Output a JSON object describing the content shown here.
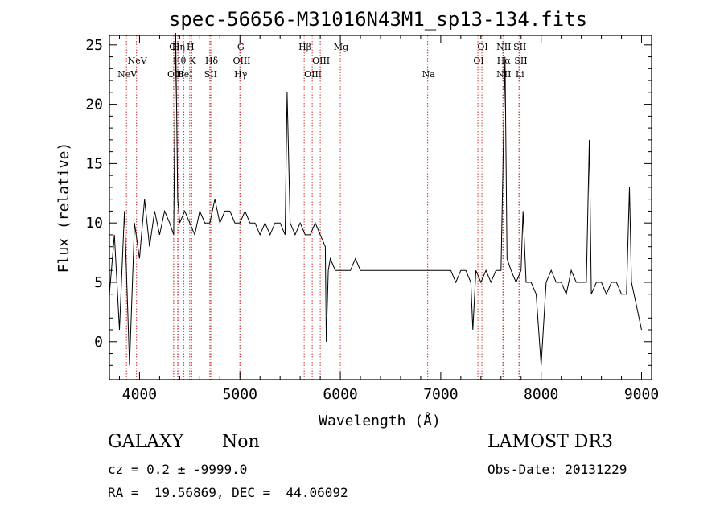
{
  "chart_data": {
    "type": "line",
    "title": "spec-56656-M31016N43M1_sp13-134.fits",
    "xlabel": "Wavelength (Å)",
    "ylabel": "Flux (relative)",
    "xlim": [
      3700,
      9100
    ],
    "ylim": [
      -3.2,
      25.8
    ],
    "xticks": [
      4000,
      5000,
      6000,
      7000,
      8000,
      9000
    ],
    "xtick_labels": [
      "4000",
      "5000",
      "6000",
      "7000",
      "8000",
      "9000"
    ],
    "yticks": [
      0,
      5,
      10,
      15,
      20,
      25
    ],
    "ytick_labels": [
      "0",
      "5",
      "10",
      "15",
      "20",
      "25"
    ],
    "spectrum_x": [
      3700,
      3750,
      3800,
      3850,
      3900,
      3950,
      4000,
      4050,
      4100,
      4150,
      4200,
      4250,
      4300,
      4340,
      4360,
      4380,
      4400,
      4450,
      4500,
      4550,
      4600,
      4650,
      4700,
      4750,
      4800,
      4850,
      4900,
      4950,
      5000,
      5050,
      5100,
      5150,
      5200,
      5250,
      5300,
      5350,
      5400,
      5450,
      5470,
      5500,
      5550,
      5600,
      5650,
      5700,
      5750,
      5800,
      5850,
      5860,
      5880,
      5900,
      5950,
      6000,
      6050,
      6100,
      6150,
      6200,
      6250,
      6300,
      6350,
      6400,
      6450,
      6500,
      6550,
      6600,
      6650,
      6700,
      6750,
      6800,
      6850,
      6900,
      6950,
      7000,
      7050,
      7100,
      7150,
      7200,
      7250,
      7300,
      7320,
      7350,
      7400,
      7450,
      7500,
      7550,
      7600,
      7640,
      7660,
      7700,
      7750,
      7800,
      7820,
      7850,
      7900,
      7950,
      8000,
      8050,
      8100,
      8150,
      8200,
      8250,
      8300,
      8350,
      8400,
      8450,
      8480,
      8500,
      8550,
      8600,
      8650,
      8700,
      8750,
      8800,
      8850,
      8880,
      8900,
      8950,
      9000
    ],
    "spectrum_y": [
      4,
      9,
      1,
      11,
      -2,
      10,
      7,
      12,
      8,
      11,
      9,
      11,
      10,
      9,
      26,
      12,
      10,
      11,
      10,
      9,
      11,
      10,
      10,
      12,
      10,
      11,
      11,
      10,
      10,
      11,
      10,
      10,
      9,
      10,
      9,
      10,
      10,
      9,
      21,
      10,
      9,
      10,
      9,
      9,
      10,
      9,
      8,
      0,
      6,
      7,
      6,
      6,
      6,
      6,
      7,
      6,
      6,
      6,
      6,
      6,
      6,
      6,
      6,
      6,
      6,
      6,
      6,
      6,
      6,
      6,
      6,
      6,
      6,
      6,
      5,
      6,
      6,
      5,
      1,
      6,
      5,
      6,
      5,
      6,
      6,
      24,
      7,
      6,
      5,
      6,
      11,
      5,
      5,
      4,
      -2,
      5,
      6,
      5,
      5,
      4,
      6,
      5,
      5,
      5,
      17,
      4,
      5,
      5,
      4,
      5,
      5,
      4,
      4,
      13,
      5,
      3,
      1
    ],
    "lines": [
      {
        "w": 3870,
        "label": "NeV",
        "row": 3
      },
      {
        "w": 3970,
        "label": "NeV",
        "row": 2
      },
      {
        "w": 4340,
        "label": "OII",
        "row": 3
      },
      {
        "w": 4340,
        "label": "OI",
        "row": 1
      },
      {
        "w": 4380,
        "label": "Hη",
        "row": 1
      },
      {
        "w": 4390,
        "label": "Hθ",
        "row": 2
      },
      {
        "w": 4440,
        "label": "HeI",
        "row": 3
      },
      {
        "w": 4500,
        "label": "H",
        "row": 1
      },
      {
        "w": 4520,
        "label": "K",
        "row": 2
      },
      {
        "w": 4700,
        "label": "SII",
        "row": 3
      },
      {
        "w": 4710,
        "label": "Hδ",
        "row": 2
      },
      {
        "w": 5000,
        "label": "G",
        "row": 1
      },
      {
        "w": 5010,
        "label": "OIII",
        "row": 2
      },
      {
        "w": 5000,
        "label": "Hγ",
        "row": 3
      },
      {
        "w": 5640,
        "label": "Hβ",
        "row": 1
      },
      {
        "w": 5720,
        "label": "OIII",
        "row": 3
      },
      {
        "w": 5800,
        "label": "OIII",
        "row": 2
      },
      {
        "w": 6000,
        "label": "Mg",
        "row": 1
      },
      {
        "w": 6870,
        "label": "Na",
        "row": 3
      },
      {
        "w": 7370,
        "label": "OI",
        "row": 2
      },
      {
        "w": 7410,
        "label": "OI",
        "row": 1
      },
      {
        "w": 7620,
        "label": "NII",
        "row": 1
      },
      {
        "w": 7620,
        "label": "Hα",
        "row": 2
      },
      {
        "w": 7620,
        "label": "NII",
        "row": 3
      },
      {
        "w": 7780,
        "label": "SII",
        "row": 1
      },
      {
        "w": 7790,
        "label": "SII",
        "row": 2
      },
      {
        "w": 7780,
        "label": "Li",
        "row": 3
      }
    ]
  },
  "info": {
    "class": "GALAXY",
    "subclass": "Non",
    "survey": "LAMOST DR3",
    "cz": "cz = 0.2 ± -9999.0",
    "obs_date": "Obs-Date: 20131229",
    "radec": "RA =  19.56869, DEC =  44.06092"
  }
}
